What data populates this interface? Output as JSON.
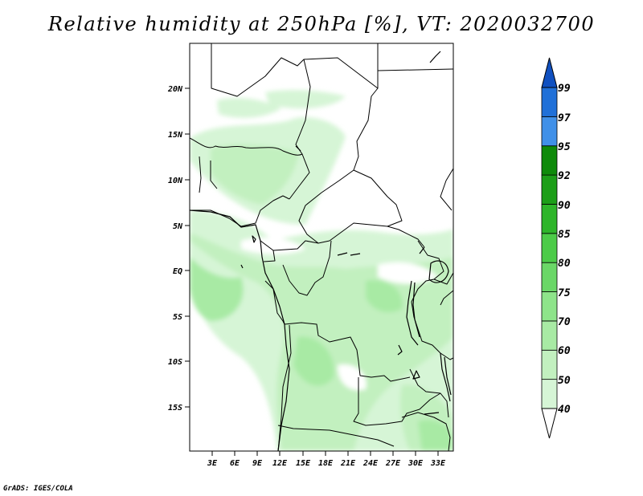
{
  "title": "Relative humidity at 250hPa [%], VT: 2020032700",
  "credit": "GrADS: IGES/COLA",
  "map": {
    "projection": "latlon",
    "lon_range": [
      0,
      35
    ],
    "lat_range": [
      -20,
      25
    ],
    "lon_ticks": [
      "3E",
      "6E",
      "9E",
      "12E",
      "15E",
      "18E",
      "21E",
      "24E",
      "27E",
      "30E",
      "33E"
    ],
    "lat_ticks": [
      "20N",
      "15N",
      "10N",
      "5N",
      "EQ",
      "5S",
      "10S",
      "15S"
    ]
  },
  "colorbar": {
    "labels": [
      "40",
      "50",
      "60",
      "70",
      "75",
      "80",
      "85",
      "90",
      "92",
      "95",
      "97",
      "99"
    ],
    "colors": [
      "#f0fff0",
      "#d6f5d6",
      "#c2f0bf",
      "#a8eaa4",
      "#8ee48a",
      "#6ad767",
      "#4ccb48",
      "#2eb52a",
      "#1c9e18",
      "#0e8a0a",
      "#4090e8",
      "#2070d8",
      "#1050c0"
    ]
  }
}
